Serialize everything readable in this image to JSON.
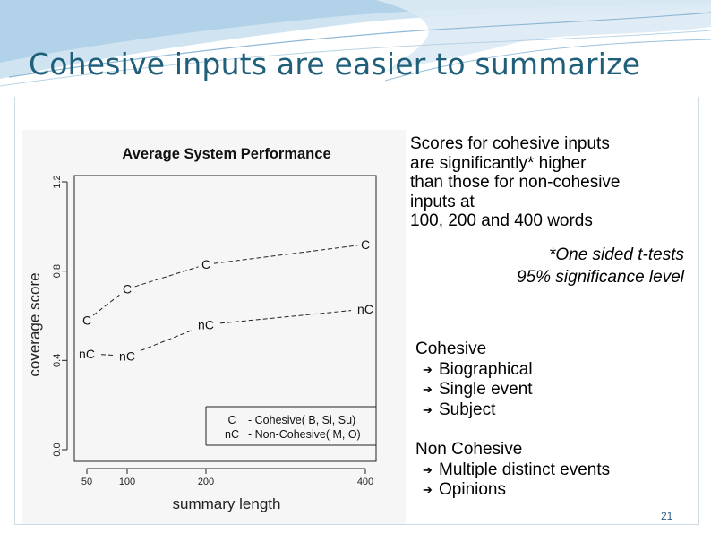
{
  "slide": {
    "title": "Cohesive inputs are easier to summarize",
    "description_lines": [
      "Scores for cohesive inputs",
      "are significantly* higher",
      "than those for non-cohesive",
      "inputs at",
      "100, 200 and 400 words"
    ],
    "note_lines": [
      "*One sided t-tests",
      "95% significance level"
    ],
    "groups": [
      {
        "heading": "Cohesive",
        "items": [
          "Biographical",
          "Single event",
          "Subject"
        ]
      },
      {
        "heading": "Non Cohesive",
        "items": [
          "Multiple distinct events",
          "Opinions"
        ]
      }
    ],
    "bullet_icon": "arrow-right-icon",
    "page_number": "21",
    "colors": {
      "title": "#1f5f7a",
      "banner": "#bcd8ea",
      "page_number": "#2a5d86"
    }
  },
  "chart_data": {
    "type": "line",
    "title": "Average System Performance",
    "xlabel": "summary length",
    "ylabel": "coverage score",
    "x": [
      50,
      100,
      200,
      400
    ],
    "x_ticks": [
      "50",
      "100",
      "200",
      "400"
    ],
    "y_ticks": [
      "0.0",
      "0.4",
      "0.8",
      "1.2"
    ],
    "ylim": [
      0.0,
      1.2
    ],
    "series": [
      {
        "name": "Cohesive( B, Si, Su)",
        "marker": "C",
        "values": [
          0.58,
          0.72,
          0.83,
          0.92
        ]
      },
      {
        "name": "Non-Cohesive( M, O)",
        "marker": "nC",
        "values": [
          0.43,
          0.42,
          0.56,
          0.63
        ]
      }
    ],
    "legend": {
      "position": "bottom-right",
      "entries": [
        {
          "marker": "C",
          "label": "- Cohesive( B, Si, Su)"
        },
        {
          "marker": "nC",
          "label": "- Non-Cohesive( M, O)"
        }
      ]
    },
    "line_style": "dashed",
    "grid": false
  }
}
